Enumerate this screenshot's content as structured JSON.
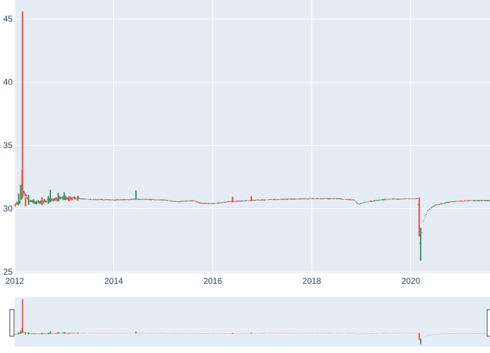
{
  "chart_data": {
    "type": "candlestick",
    "title": "",
    "xlabel": "",
    "ylabel": "",
    "xlim": [
      2012.0,
      2021.6
    ],
    "ylim": [
      24.9,
      46.5
    ],
    "yticks": [
      25,
      30,
      35,
      40,
      45
    ],
    "xticks": [
      2012,
      2014,
      2016,
      2018,
      2020
    ],
    "grid": true,
    "legend": "none",
    "rangeslider": true,
    "colors": {
      "increasing": "#3d9970",
      "decreasing": "#ef553b",
      "plot_bg": "#e5ecf6",
      "grid": "#ffffff",
      "tick_text": "#2a3f5f",
      "handle": "#444444"
    },
    "shape_points": [
      [
        2012.0,
        30.3
      ],
      [
        2012.1,
        30.5
      ],
      [
        2012.18,
        31.3
      ],
      [
        2012.3,
        30.6
      ],
      [
        2012.5,
        30.5
      ],
      [
        2012.7,
        30.7
      ],
      [
        2013.0,
        30.85
      ],
      [
        2013.5,
        30.75
      ],
      [
        2014.0,
        30.7
      ],
      [
        2014.5,
        30.75
      ],
      [
        2015.0,
        30.7
      ],
      [
        2015.3,
        30.55
      ],
      [
        2015.6,
        30.65
      ],
      [
        2015.75,
        30.45
      ],
      [
        2016.0,
        30.4
      ],
      [
        2016.3,
        30.55
      ],
      [
        2016.7,
        30.65
      ],
      [
        2017.0,
        30.7
      ],
      [
        2017.5,
        30.75
      ],
      [
        2018.0,
        30.8
      ],
      [
        2018.5,
        30.8
      ],
      [
        2018.85,
        30.7
      ],
      [
        2018.95,
        30.35
      ],
      [
        2019.1,
        30.55
      ],
      [
        2019.5,
        30.75
      ],
      [
        2020.0,
        30.8
      ],
      [
        2020.15,
        30.8
      ],
      [
        2020.17,
        28.5
      ],
      [
        2020.2,
        26.2
      ],
      [
        2020.25,
        29.0
      ],
      [
        2020.35,
        29.9
      ],
      [
        2020.5,
        30.3
      ],
      [
        2020.8,
        30.55
      ],
      [
        2021.0,
        30.6
      ],
      [
        2021.3,
        30.65
      ],
      [
        2021.6,
        30.65
      ]
    ],
    "spikes": [
      {
        "x": 2012.16,
        "low": 30.9,
        "high": 45.6,
        "dir": "down"
      },
      {
        "x": 2012.15,
        "low": 30.8,
        "high": 33.1,
        "dir": "down"
      },
      {
        "x": 2012.12,
        "low": 30.7,
        "high": 31.9,
        "dir": "up"
      },
      {
        "x": 2012.08,
        "low": 30.4,
        "high": 31.2,
        "dir": "up"
      },
      {
        "x": 2012.22,
        "low": 30.2,
        "high": 30.9,
        "dir": "down"
      },
      {
        "x": 2012.28,
        "low": 30.3,
        "high": 31.1,
        "dir": "up"
      },
      {
        "x": 2012.55,
        "low": 30.3,
        "high": 30.9,
        "dir": "down"
      },
      {
        "x": 2012.68,
        "low": 30.4,
        "high": 31.0,
        "dir": "up"
      },
      {
        "x": 2012.72,
        "low": 30.6,
        "high": 31.5,
        "dir": "up"
      },
      {
        "x": 2012.88,
        "low": 30.7,
        "high": 31.25,
        "dir": "up"
      },
      {
        "x": 2013.0,
        "low": 30.7,
        "high": 31.3,
        "dir": "up"
      },
      {
        "x": 2013.1,
        "low": 30.6,
        "high": 31.0,
        "dir": "down"
      },
      {
        "x": 2014.45,
        "low": 30.7,
        "high": 31.45,
        "dir": "up"
      },
      {
        "x": 2016.4,
        "low": 30.5,
        "high": 30.95,
        "dir": "down"
      },
      {
        "x": 2016.78,
        "low": 30.6,
        "high": 31.0,
        "dir": "down"
      },
      {
        "x": 2020.17,
        "low": 27.8,
        "high": 30.9,
        "dir": "down"
      },
      {
        "x": 2020.2,
        "low": 25.9,
        "high": 28.5,
        "dir": "up"
      }
    ]
  }
}
